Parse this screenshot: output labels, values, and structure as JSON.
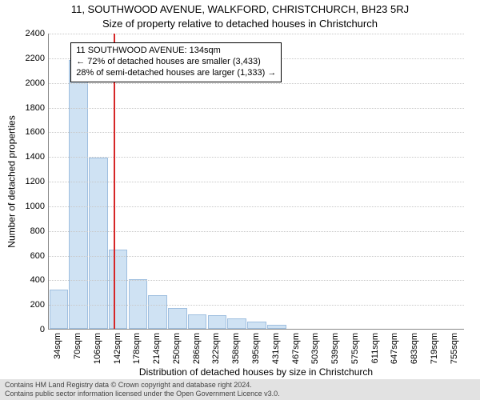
{
  "title_line1": "11, SOUTHWOOD AVENUE, WALKFORD, CHRISTCHURCH, BH23 5RJ",
  "title_line2": "Size of property relative to detached houses in Christchurch",
  "chart": {
    "type": "histogram",
    "ylabel": "Number of detached properties",
    "xlabel": "Distribution of detached houses by size in Christchurch",
    "ylim": [
      0,
      2400
    ],
    "ytick_step": 200,
    "yticks": [
      0,
      200,
      400,
      600,
      800,
      1000,
      1200,
      1400,
      1600,
      1800,
      2000,
      2200,
      2400
    ],
    "x_categories": [
      "34sqm",
      "70sqm",
      "106sqm",
      "142sqm",
      "178sqm",
      "214sqm",
      "250sqm",
      "286sqm",
      "322sqm",
      "358sqm",
      "395sqm",
      "431sqm",
      "467sqm",
      "503sqm",
      "539sqm",
      "575sqm",
      "611sqm",
      "647sqm",
      "683sqm",
      "719sqm",
      "755sqm"
    ],
    "bar_values": [
      320,
      2180,
      1390,
      640,
      400,
      275,
      170,
      120,
      110,
      85,
      60,
      35,
      0,
      0,
      0,
      0,
      0,
      0,
      0,
      0,
      0
    ],
    "bar_fill": "#cfe2f3",
    "bar_edge": "#9fbfdf",
    "background_color": "#ffffff",
    "grid_color": "#c8c8c8",
    "axis_color": "#888888",
    "marker": {
      "value_sqm": 134,
      "x_fraction_between": {
        "left_cat_index": 2,
        "right_cat_index": 3,
        "fraction": 0.78
      },
      "color": "#d62728"
    },
    "annotation": {
      "lines": [
        "11 SOUTHWOOD AVENUE: 134sqm",
        "← 72% of detached houses are smaller (3,433)",
        "28% of semi-detached houses are larger (1,333) →"
      ],
      "x_cat_index": 1,
      "y_value": 2300
    },
    "label_fontsize": 12,
    "tick_fontsize": 11,
    "title_fontsize": 13
  },
  "footer": {
    "line1": "Contains HM Land Registry data © Crown copyright and database right 2024.",
    "line2": "Contains public sector information licensed under the Open Government Licence v3.0."
  }
}
